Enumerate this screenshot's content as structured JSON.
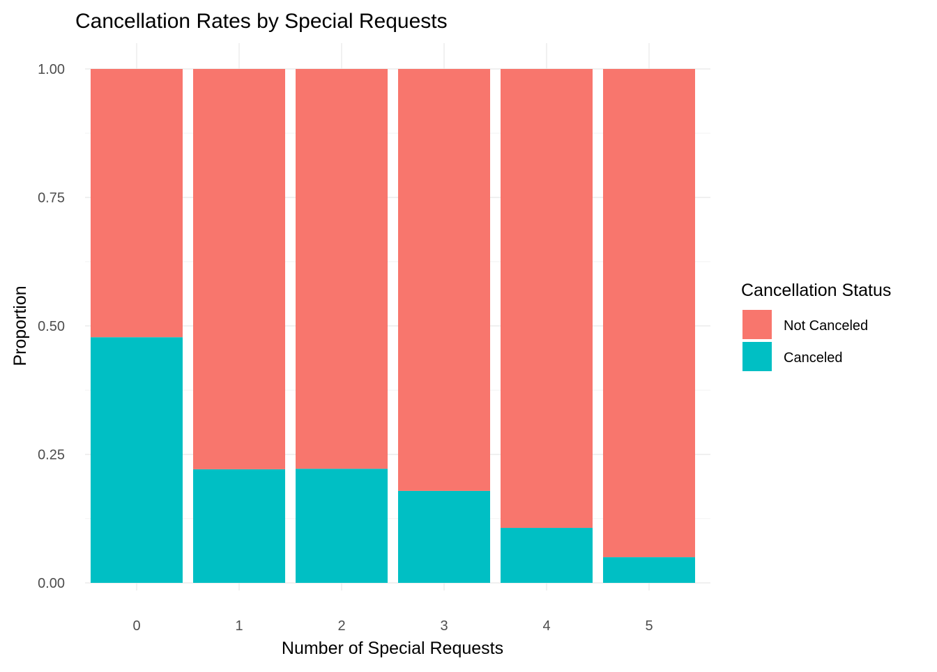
{
  "chart_data": {
    "type": "bar",
    "stacked": true,
    "title": "Cancellation Rates by Special Requests",
    "xlabel": "Number of Special Requests",
    "ylabel": "Proportion",
    "categories": [
      "0",
      "1",
      "2",
      "3",
      "4",
      "5"
    ],
    "ylim": [
      0,
      1
    ],
    "yticks": [
      "0.00",
      "0.25",
      "0.50",
      "0.75",
      "1.00"
    ],
    "grid": true,
    "legend": {
      "title": "Cancellation Status",
      "position": "right",
      "entries": [
        "Not Canceled",
        "Canceled"
      ]
    },
    "series": [
      {
        "name": "Canceled",
        "color": "#00BFC4",
        "values": [
          0.478,
          0.221,
          0.222,
          0.179,
          0.107,
          0.05
        ]
      },
      {
        "name": "Not Canceled",
        "color": "#F8766D",
        "values": [
          0.522,
          0.779,
          0.778,
          0.821,
          0.893,
          0.95
        ]
      }
    ]
  }
}
